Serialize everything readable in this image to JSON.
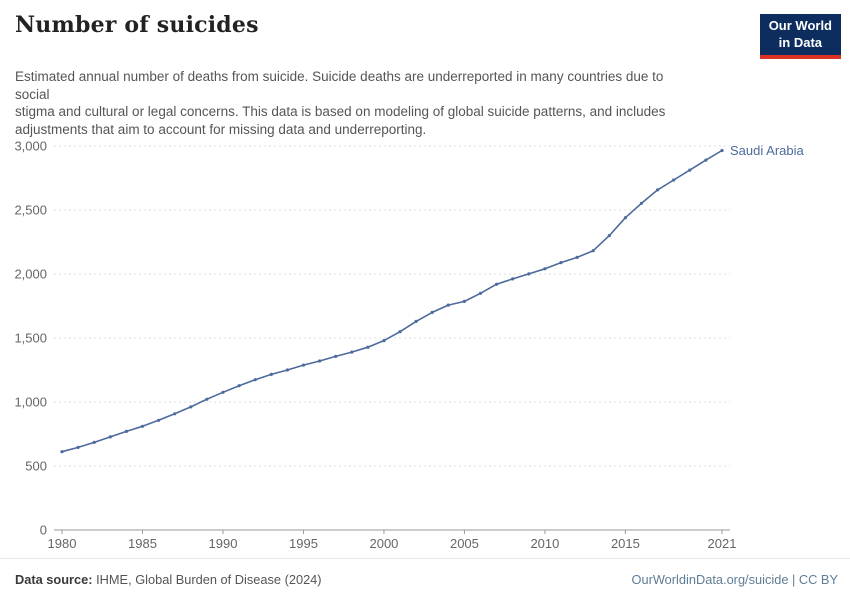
{
  "header": {
    "title": "Number of suicides",
    "subtitle_lines": [
      "Estimated annual number of deaths from suicide. Suicide deaths are underreported in many countries due to",
      "social",
      "stigma and cultural or legal concerns. This data is based on modeling of global suicide patterns, and includes",
      "adjustments that aim to account for missing data and underreporting."
    ],
    "logo": {
      "line1": "Our World",
      "line2": "in Data"
    }
  },
  "colors": {
    "series": "#4c6a9c",
    "gridline": "#dcdcdc",
    "axis": "#9a9a9a",
    "tick_label": "#666666",
    "logo_navy": "#0d2d5e",
    "logo_red": "#dd3123",
    "footer_link": "#5f7d95"
  },
  "chart_data": {
    "type": "line",
    "title": "Number of suicides",
    "entity": "Saudi Arabia",
    "x": [
      1980,
      1981,
      1982,
      1983,
      1984,
      1985,
      1986,
      1987,
      1988,
      1989,
      1990,
      1991,
      1992,
      1993,
      1994,
      1995,
      1996,
      1997,
      1998,
      1999,
      2000,
      2001,
      2002,
      2003,
      2004,
      2005,
      2006,
      2007,
      2008,
      2009,
      2010,
      2011,
      2012,
      2013,
      2014,
      2015,
      2016,
      2017,
      2018,
      2019,
      2020,
      2021
    ],
    "series": [
      {
        "name": "Saudi Arabia",
        "color": "#4c6a9c",
        "values": [
          612,
          645,
          684,
          727,
          770,
          810,
          857,
          908,
          962,
          1022,
          1076,
          1127,
          1174,
          1216,
          1250,
          1288,
          1320,
          1356,
          1390,
          1428,
          1480,
          1549,
          1630,
          1700,
          1757,
          1786,
          1849,
          1920,
          1962,
          2001,
          2041,
          2089,
          2130,
          2182,
          2300,
          2440,
          2552,
          2657,
          2734,
          2812,
          2890,
          2965
        ]
      }
    ],
    "xticks": [
      1980,
      1985,
      1990,
      1995,
      2000,
      2005,
      2010,
      2015,
      2021
    ],
    "yticks": [
      0,
      500,
      1000,
      1500,
      2000,
      2500,
      3000
    ],
    "xlim": [
      1980,
      2021
    ],
    "ylim": [
      0,
      3000
    ],
    "xlabel": "",
    "ylabel": "",
    "grid": "horizontal-dashed",
    "legend": "end-of-line-label"
  },
  "footer": {
    "source_label": "Data source:",
    "source_text": " IHME, Global Burden of Disease (2024)",
    "credit": "OurWorldinData.org/suicide | CC BY"
  }
}
